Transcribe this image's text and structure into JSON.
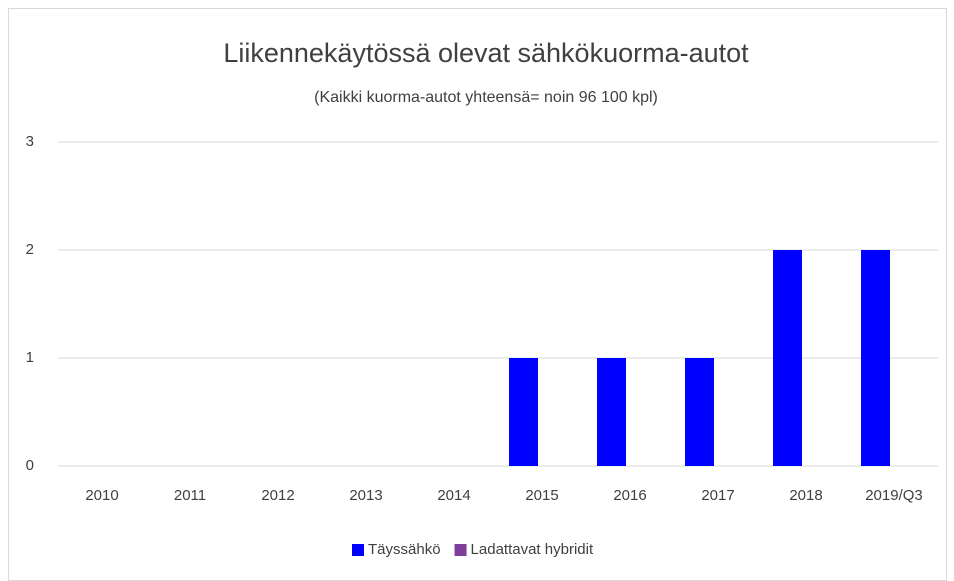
{
  "chart_data": {
    "type": "bar",
    "title": "Liikennekäytössä olevat sähkökuorma-autot",
    "subtitle": "(Kaikki kuorma-autot yhteensä= noin 96 100 kpl)",
    "categories": [
      "2010",
      "2011",
      "2012",
      "2013",
      "2014",
      "2015",
      "2016",
      "2017",
      "2018",
      "2019/Q3"
    ],
    "series": [
      {
        "name": "Täyssähkö",
        "color": "#0000ff",
        "values": [
          0,
          0,
          0,
          0,
          0,
          1,
          1,
          1,
          2,
          2
        ]
      },
      {
        "name": "Ladattavat hybridit",
        "color": "#7f3f98",
        "values": [
          0,
          0,
          0,
          0,
          0,
          0,
          0,
          0,
          0,
          0
        ]
      }
    ],
    "ylim": [
      0,
      3
    ],
    "yticks": [
      0,
      1,
      2,
      3
    ],
    "grid": true,
    "legend": "bottom"
  }
}
